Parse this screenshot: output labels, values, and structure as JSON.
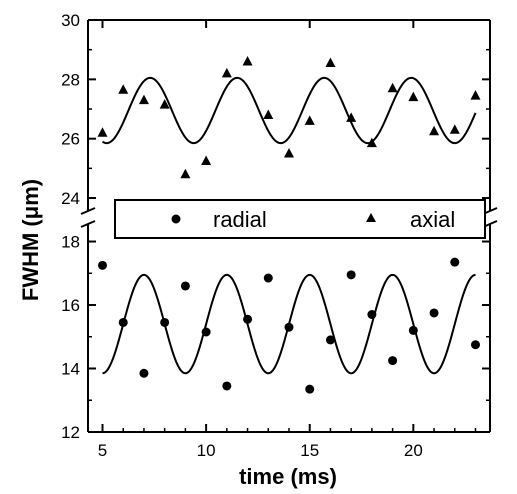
{
  "chart_data": {
    "type": "scatter",
    "xlabel": "time (ms)",
    "ylabel": "FWHM (μm)",
    "xlim": [
      4.3,
      23.7
    ],
    "x_ticks": [
      "5",
      "10",
      "15",
      "20"
    ],
    "x_tick_values": [
      5,
      10,
      15,
      20
    ],
    "axis_break": true,
    "upper_panel": {
      "ylim": [
        23.9,
        30
      ],
      "y_ticks": [
        "24",
        "26",
        "28",
        "30"
      ],
      "y_tick_values": [
        24,
        26,
        28,
        30
      ]
    },
    "lower_panel": {
      "ylim": [
        12,
        18.3
      ],
      "y_ticks": [
        "12",
        "14",
        "16",
        "18"
      ],
      "y_tick_values": [
        12,
        14,
        16,
        18
      ]
    },
    "legend": {
      "placement": "upper-panel-bottom",
      "entries": [
        "radial",
        "axial"
      ]
    },
    "series": [
      {
        "name": "radial",
        "marker": "circle",
        "panel": "lower",
        "x": [
          5,
          6,
          7,
          8,
          9,
          10,
          11,
          12,
          13,
          14,
          15,
          16,
          17,
          18,
          19,
          20,
          21,
          22,
          23
        ],
        "y": [
          17.25,
          15.45,
          13.85,
          15.45,
          16.6,
          15.15,
          13.45,
          15.55,
          16.85,
          15.3,
          13.35,
          14.9,
          16.95,
          15.7,
          14.25,
          15.2,
          15.75,
          17.35,
          14.75
        ]
      },
      {
        "name": "axial",
        "marker": "triangle",
        "panel": "upper",
        "x": [
          5,
          6,
          7,
          8,
          9,
          10,
          11,
          12,
          13,
          14,
          15,
          16,
          17,
          18,
          19,
          20,
          21,
          22,
          23
        ],
        "y": [
          26.2,
          27.65,
          27.3,
          27.15,
          24.8,
          25.25,
          28.2,
          28.6,
          26.8,
          25.5,
          26.6,
          28.55,
          26.7,
          25.85,
          27.7,
          27.4,
          26.25,
          26.3,
          27.45
        ]
      }
    ],
    "fits": [
      {
        "series": "axial",
        "type": "sine",
        "x_range": [
          5,
          23
        ],
        "mean": 26.95,
        "amplitude": 1.1,
        "period": 4.2,
        "phase_x": 6.25
      },
      {
        "series": "radial",
        "type": "sine",
        "x_range": [
          5,
          23
        ],
        "mean": 15.4,
        "amplitude": 1.55,
        "period": 4.0,
        "phase_x": 6.0
      }
    ]
  }
}
